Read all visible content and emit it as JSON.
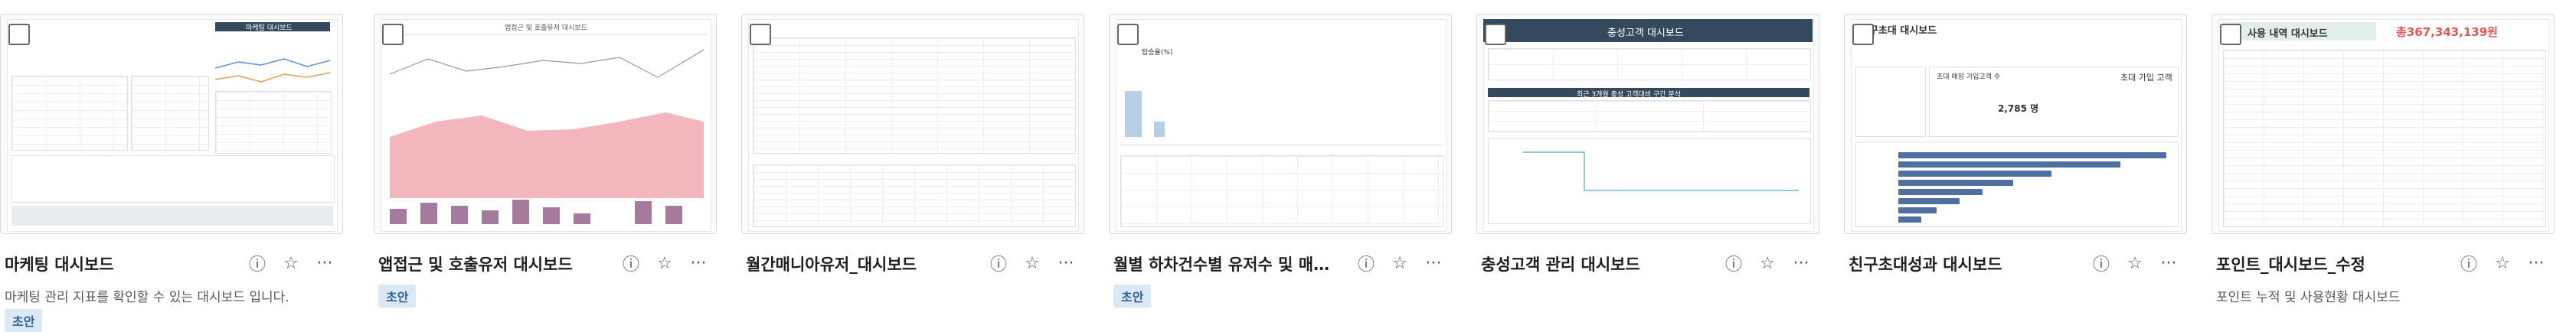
{
  "cards": [
    {
      "title": "마케팅 대시보드",
      "description": "마케팅 관리 지표를 확인할 수 있는 대시보드 입니다.",
      "badge": "초안",
      "thumb_header": "마케팅 대시보드"
    },
    {
      "title": "앱접근 및 호출유저 대시보드",
      "description": "",
      "badge": "초안",
      "thumb_header": "앱접근 및 호출유저 대시보드"
    },
    {
      "title": "월간매니아유저_대시보드",
      "description": "",
      "badge": "",
      "thumb_header": ""
    },
    {
      "title": "월별 하차건수별 유저수 및 매출...",
      "description": "",
      "badge": "초안",
      "thumb_header": "",
      "thumb_label": "탑승율(%)"
    },
    {
      "title": "충성고객 관리 대시보드",
      "description": "",
      "badge": "",
      "thumb_header": "충성고객 대시보드",
      "thumb_sub": "최근 3개월 충성 고객대비 구간 분석"
    },
    {
      "title": "친구초대성과 대시보드",
      "description": "",
      "badge": "",
      "thumb_header": "친구초대 대시보드",
      "thumb_big": "2,785 명",
      "thumb_label": "초대 매장 가입고객 수",
      "thumb_label2": "초대 가입 고객"
    },
    {
      "title": "포인트_대시보드_수정",
      "description": "포인트 누적 및 사용현황 대시보드",
      "badge": "",
      "thumb_header": "사용 내역 대시보드",
      "thumb_big": "총367,343,139원"
    }
  ],
  "actions": {
    "info_icon": "info-icon",
    "star_icon": "star-icon",
    "more_icon": "more-icon",
    "info_glyph": "ⓘ",
    "star_glyph": "☆",
    "more_glyph": "···"
  },
  "colors": {
    "badge_bg": "#dbe8f6",
    "badge_text": "#2f5f93",
    "navy": "#34495e",
    "pink": "#f4b6bd",
    "purple": "#a57a9d",
    "blue": "#4f6fa0"
  }
}
